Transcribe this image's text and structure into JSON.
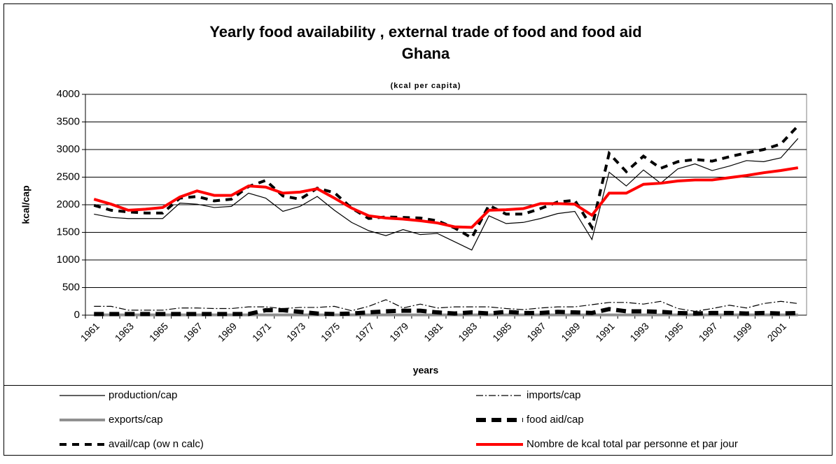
{
  "chart_data": {
    "type": "line",
    "title": "Yearly food availability , external trade of  food and food aid",
    "subtitle": "Ghana",
    "note": "(kcal per capita)",
    "x_label": "years",
    "y_label": "kcal/cap",
    "categories": [
      "1961",
      null,
      "1963",
      null,
      "1965",
      null,
      "1967",
      null,
      "1969",
      null,
      "1971",
      null,
      "1973",
      null,
      "1975",
      null,
      "1977",
      null,
      "1979",
      null,
      "1981",
      null,
      "1983",
      null,
      "1985",
      null,
      "1987",
      null,
      "1989",
      null,
      "1991",
      null,
      "1993",
      null,
      "1995",
      null,
      "1997",
      null,
      "1999",
      null,
      "2001",
      null
    ],
    "ylim": [
      0,
      4000
    ],
    "yticks": [
      0,
      500,
      1000,
      1500,
      2000,
      2500,
      3000,
      3500,
      4000
    ],
    "grid": true,
    "legend": "bottom",
    "series": [
      {
        "name": "production/cap",
        "color": "#000000",
        "linestyle": "solid",
        "linewidth": 1.2,
        "values": [
          1830,
          1770,
          1750,
          1750,
          1750,
          2030,
          2010,
          1950,
          1970,
          2210,
          2120,
          1880,
          1970,
          2150,
          1900,
          1680,
          1530,
          1440,
          1550,
          1460,
          1480,
          1330,
          1180,
          1800,
          1660,
          1680,
          1750,
          1840,
          1880,
          1370,
          2590,
          2340,
          2630,
          2390,
          2650,
          2740,
          2620,
          2700,
          2800,
          2780,
          2850,
          3200
        ]
      },
      {
        "name": "imports/cap",
        "color": "#000000",
        "linestyle": "dashdot",
        "linewidth": 1.2,
        "values": [
          160,
          160,
          90,
          90,
          90,
          130,
          130,
          120,
          120,
          150,
          150,
          120,
          140,
          140,
          160,
          80,
          160,
          280,
          130,
          200,
          130,
          150,
          150,
          150,
          120,
          100,
          130,
          150,
          150,
          190,
          230,
          230,
          200,
          250,
          120,
          70,
          120,
          180,
          130,
          210,
          250,
          210
        ]
      },
      {
        "name": "exports/cap",
        "color": "#909090",
        "linestyle": "solid",
        "linewidth": 4,
        "values": [
          5,
          5,
          5,
          5,
          5,
          5,
          5,
          5,
          5,
          5,
          5,
          5,
          5,
          5,
          5,
          5,
          5,
          5,
          5,
          5,
          5,
          5,
          5,
          5,
          5,
          5,
          5,
          5,
          5,
          5,
          5,
          5,
          5,
          5,
          5,
          5,
          5,
          5,
          5,
          5,
          5,
          5
        ]
      },
      {
        "name": "food aid/cap",
        "color": "#000000",
        "linestyle": "dash",
        "linewidth": 6,
        "values": [
          20,
          20,
          20,
          20,
          20,
          20,
          20,
          20,
          20,
          20,
          90,
          90,
          60,
          30,
          20,
          30,
          50,
          70,
          80,
          80,
          50,
          30,
          50,
          30,
          60,
          40,
          40,
          60,
          50,
          40,
          110,
          70,
          70,
          60,
          40,
          30,
          40,
          40,
          30,
          40,
          30,
          40
        ]
      },
      {
        "name": "avail/cap (ow n calc)",
        "color": "#000000",
        "linestyle": "dash",
        "linewidth": 4,
        "values": [
          1990,
          1900,
          1870,
          1850,
          1850,
          2120,
          2150,
          2070,
          2100,
          2330,
          2440,
          2160,
          2100,
          2300,
          2220,
          1940,
          1750,
          1780,
          1770,
          1760,
          1710,
          1580,
          1400,
          1990,
          1830,
          1830,
          1930,
          2050,
          2080,
          1590,
          2930,
          2600,
          2880,
          2660,
          2780,
          2820,
          2790,
          2870,
          2940,
          3000,
          3100,
          3430
        ]
      },
      {
        "name": "Nombre de kcal total par personne et par jour",
        "color": "#ff0000",
        "linestyle": "solid",
        "linewidth": 4,
        "values": [
          2100,
          2010,
          1900,
          1920,
          1950,
          2140,
          2250,
          2170,
          2170,
          2340,
          2320,
          2210,
          2230,
          2290,
          2120,
          1940,
          1800,
          1760,
          1740,
          1710,
          1670,
          1600,
          1590,
          1900,
          1910,
          1930,
          2020,
          2020,
          2010,
          1810,
          2210,
          2210,
          2370,
          2390,
          2430,
          2450,
          2450,
          2490,
          2530,
          2580,
          2620,
          2670
        ]
      }
    ]
  }
}
